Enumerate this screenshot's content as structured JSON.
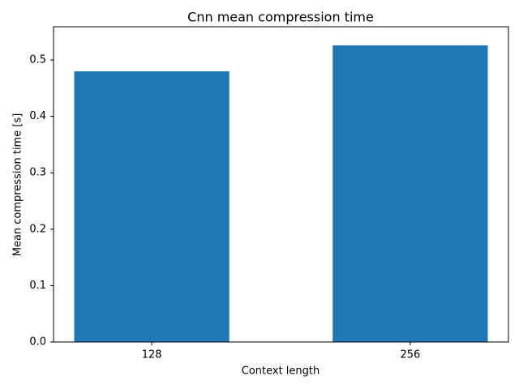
{
  "chart_data": {
    "type": "bar",
    "title": "Cnn mean compression time",
    "x_label": "Context length",
    "y_label": "Mean compression time [s]",
    "categories": [
      "128",
      "256"
    ],
    "values": [
      0.48,
      0.526
    ],
    "color": "#1f77b4",
    "ylim": [
      0,
      0.559
    ],
    "yticks": [
      {
        "value": 0,
        "label": "0.0"
      },
      0.1,
      0.2,
      0.3,
      0.4,
      0.5
    ],
    "grid": false
  }
}
